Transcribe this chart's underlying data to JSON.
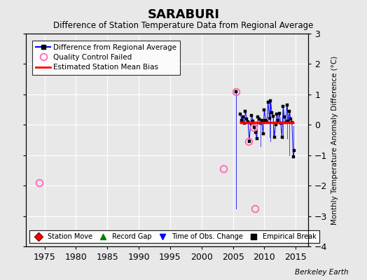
{
  "title": "SARABURI",
  "subtitle": "Difference of Station Temperature Data from Regional Average",
  "ylabel_right": "Monthly Temperature Anomaly Difference (°C)",
  "xlim": [
    1972,
    2017
  ],
  "ylim": [
    -4,
    3
  ],
  "yticks": [
    -4,
    -3,
    -2,
    -1,
    0,
    1,
    2,
    3
  ],
  "xticks": [
    1975,
    1980,
    1985,
    1990,
    1995,
    2000,
    2005,
    2010,
    2015
  ],
  "background_color": "#e8e8e8",
  "plot_bg_color": "#e8e8e8",
  "grid_color": "#ffffff",
  "watermark": "Berkeley Earth",
  "bias_line_y": 0.07,
  "bias_line_xstart": 2006.0,
  "bias_line_xend": 2014.8,
  "qc_failed_points": [
    {
      "year": 1974.2,
      "value": -1.9
    },
    {
      "year": 2003.5,
      "value": -1.45
    },
    {
      "year": 2005.5,
      "value": 1.1
    },
    {
      "year": 2007.5,
      "value": -0.55
    },
    {
      "year": 2008.3,
      "value": -0.08
    },
    {
      "year": 2008.5,
      "value": -2.75
    }
  ],
  "main_line_segments": [
    {
      "years": [
        2005.5,
        2005.5
      ],
      "values": [
        1.1,
        -2.75
      ]
    },
    {
      "years": [
        2006.2,
        2006.4,
        2006.6,
        2006.8,
        2007.0,
        2007.2,
        2007.4,
        2007.6,
        2007.8,
        2008.0,
        2008.2,
        2008.4,
        2008.6,
        2008.8,
        2009.0,
        2009.2,
        2009.4,
        2009.6,
        2009.8,
        2010.0,
        2010.2,
        2010.4,
        2010.6,
        2010.8,
        2011.0,
        2011.2,
        2011.4,
        2011.6,
        2011.8,
        2012.0,
        2012.2,
        2012.4,
        2012.6,
        2012.8,
        2013.0,
        2013.2,
        2013.4,
        2013.6,
        2013.8,
        2014.0,
        2014.2,
        2014.4,
        2014.6,
        2014.8
      ],
      "values": [
        0.35,
        0.15,
        0.25,
        0.05,
        0.45,
        0.2,
        0.1,
        -0.55,
        0.05,
        0.3,
        0.12,
        -0.08,
        -0.25,
        -0.45,
        0.25,
        0.18,
        0.05,
        0.15,
        -0.3,
        0.5,
        0.15,
        0.1,
        0.75,
        0.22,
        0.8,
        0.4,
        0.28,
        -0.4,
        0.0,
        0.35,
        0.15,
        0.38,
        0.05,
        -0.4,
        0.6,
        0.25,
        0.08,
        0.65,
        0.12,
        0.45,
        0.18,
        0.08,
        -1.05,
        -0.85
      ]
    }
  ],
  "vertical_segments": [
    {
      "x": 2009.4,
      "y_top": 0.05,
      "y_bot": -0.7
    },
    {
      "x": 2010.8,
      "y_top": 0.75,
      "y_bot": -0.4
    },
    {
      "x": 2011.0,
      "y_top": 0.8,
      "y_bot": -0.55
    },
    {
      "x": 2011.4,
      "y_top": 0.28,
      "y_bot": -0.4
    },
    {
      "x": 2013.0,
      "y_top": 0.6,
      "y_bot": -0.45
    },
    {
      "x": 2013.6,
      "y_top": 0.65,
      "y_bot": -0.45
    },
    {
      "x": 2014.0,
      "y_top": 0.45,
      "y_bot": -1.0
    },
    {
      "x": 2014.6,
      "y_top": -0.05,
      "y_bot": -0.85
    }
  ]
}
